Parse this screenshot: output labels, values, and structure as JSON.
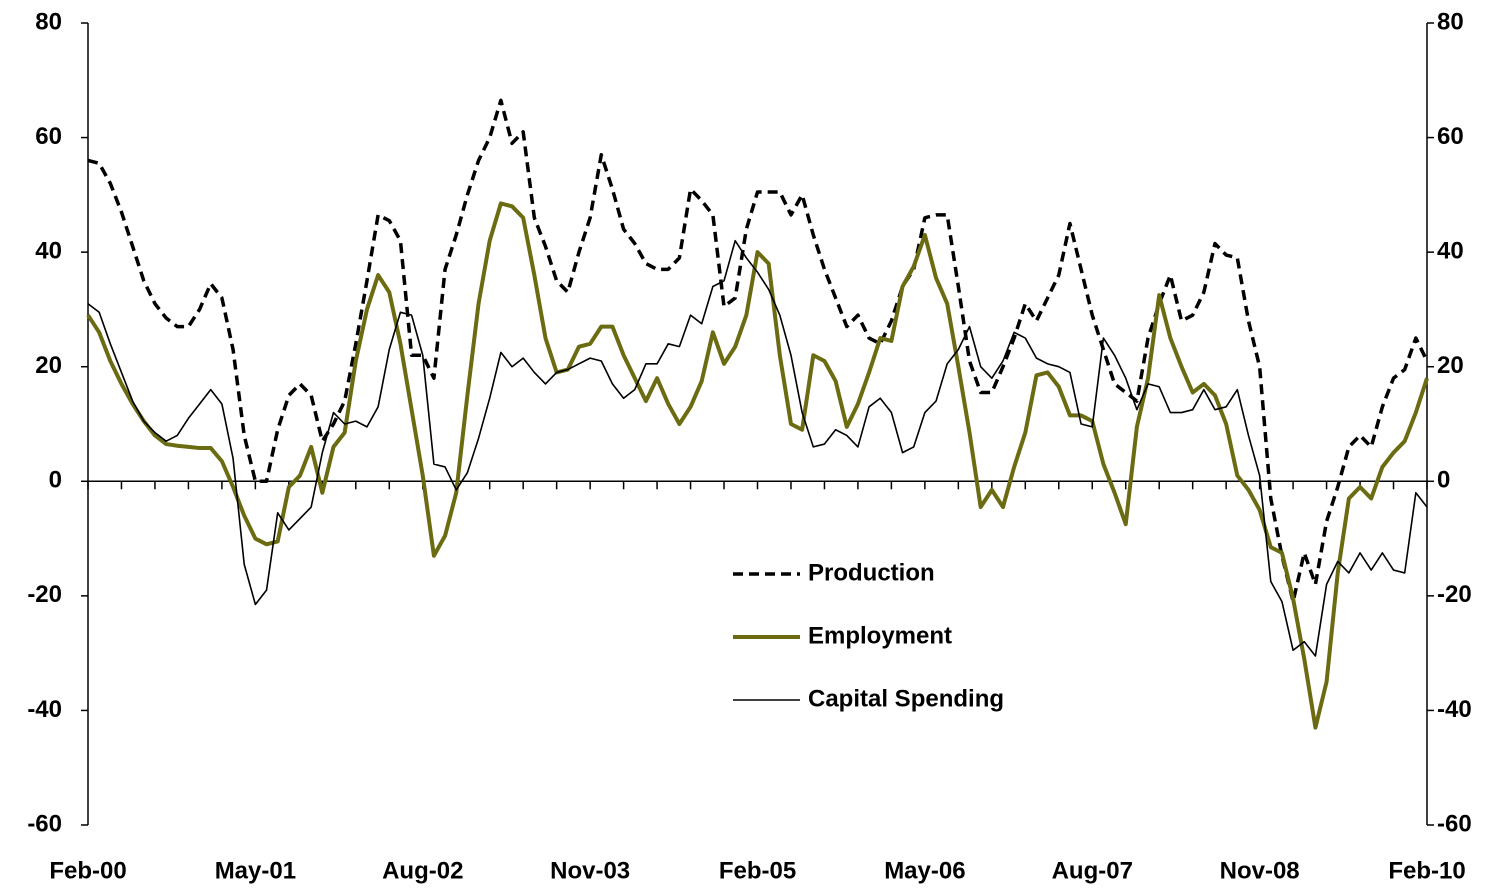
{
  "chart_data": {
    "type": "line",
    "categories": [
      "Feb-00",
      null,
      null,
      null,
      null,
      null,
      null,
      null,
      null,
      null,
      null,
      null,
      null,
      null,
      null,
      "May-01",
      null,
      null,
      null,
      null,
      null,
      null,
      null,
      null,
      null,
      null,
      null,
      null,
      null,
      null,
      "Aug-02",
      null,
      null,
      null,
      null,
      null,
      null,
      null,
      null,
      null,
      null,
      null,
      null,
      null,
      null,
      "Nov-03",
      null,
      null,
      null,
      null,
      null,
      null,
      null,
      null,
      null,
      null,
      null,
      null,
      null,
      null,
      "Feb-05",
      null,
      null,
      null,
      null,
      null,
      null,
      null,
      null,
      null,
      null,
      null,
      null,
      null,
      null,
      "May-06",
      null,
      null,
      null,
      null,
      null,
      null,
      null,
      null,
      null,
      null,
      null,
      null,
      null,
      null,
      "Aug-07",
      null,
      null,
      null,
      null,
      null,
      null,
      null,
      null,
      null,
      null,
      null,
      null,
      null,
      null,
      "Nov-08",
      null,
      null,
      null,
      null,
      null,
      null,
      null,
      null,
      null,
      null,
      null,
      null,
      null,
      null,
      "Feb-10"
    ],
    "series": [
      {
        "name": "Production",
        "color": "#000000",
        "dash": true,
        "width": 3.5,
        "values": [
          56,
          55.5,
          52,
          47,
          41,
          35,
          31,
          28.5,
          27,
          27,
          30,
          34.5,
          32,
          23,
          8,
          0,
          0,
          9,
          15,
          17,
          15,
          7,
          10,
          14,
          24,
          35,
          46.5,
          45.5,
          42,
          22,
          22,
          18,
          37,
          43,
          50,
          56,
          60,
          66.5,
          59,
          61,
          46,
          41,
          35,
          33,
          40,
          46,
          57,
          51,
          44,
          41.5,
          38,
          37,
          37,
          39,
          51,
          49,
          46.5,
          30.5,
          32,
          44,
          50.5,
          50.5,
          50.5,
          46.5,
          50,
          43,
          37,
          32,
          27,
          29,
          25,
          24,
          28,
          34,
          37,
          46,
          46.5,
          46.5,
          34,
          21,
          15.5,
          15.5,
          20,
          25,
          31,
          28,
          32,
          36,
          45,
          37,
          29,
          23,
          17,
          15.5,
          14,
          25,
          31,
          36,
          28,
          29,
          33,
          41.5,
          39.5,
          39,
          28,
          20,
          -3,
          -13,
          -21,
          -12.5,
          -18,
          -7,
          -1,
          6,
          8,
          6,
          13,
          18,
          19.5,
          25,
          21
        ]
      },
      {
        "name": "Employment",
        "color": "#6b6b12",
        "dash": false,
        "width": 4,
        "values": [
          29,
          26,
          21,
          17,
          13.5,
          10.5,
          8,
          6.5,
          6.2,
          6,
          5.8,
          5.8,
          3.5,
          -1,
          -6,
          -10,
          -11,
          -10.5,
          -1,
          1,
          6,
          -2,
          6,
          8.5,
          21,
          30,
          36,
          33,
          24,
          12.5,
          1,
          -13,
          -9.5,
          -2,
          15,
          31,
          42,
          48.5,
          48,
          46,
          36,
          25,
          19,
          19.5,
          23.5,
          24,
          27,
          27,
          22,
          18,
          14,
          18,
          13.5,
          10,
          13,
          17.5,
          26,
          20.5,
          23.5,
          29,
          40,
          38,
          22,
          10,
          9,
          22,
          21,
          17.5,
          9.5,
          13.5,
          19,
          25,
          24.5,
          34,
          37.5,
          43,
          35.5,
          31,
          20,
          8.5,
          -4.5,
          -1.5,
          -4.5,
          2.5,
          8.5,
          18.5,
          19,
          16.5,
          11.5,
          11.5,
          10.5,
          3,
          -2,
          -7.5,
          9.5,
          18,
          32.5,
          25,
          20,
          15.5,
          17,
          15,
          10,
          1,
          -1.5,
          -5,
          -11.5,
          -12.5,
          -20.5,
          -31,
          -43,
          -35,
          -16,
          -3,
          -1,
          -3,
          2.5,
          5,
          7,
          12,
          18
        ]
      },
      {
        "name": "Capital Spending",
        "color": "#000000",
        "dash": false,
        "width": 1.6,
        "values": [
          31,
          29.5,
          24,
          19,
          14,
          10.5,
          8.5,
          7,
          8,
          11,
          13.5,
          16,
          13.5,
          4,
          -14.5,
          -21.5,
          -19,
          -5.5,
          -8.5,
          -6.5,
          -4.5,
          5,
          12,
          10,
          10.5,
          9.5,
          13,
          23,
          29.5,
          29,
          22,
          3,
          2.5,
          -1.5,
          1.5,
          7.5,
          14.5,
          22.5,
          20,
          21.5,
          19,
          17,
          19,
          19.5,
          20.5,
          21.5,
          21,
          17,
          14.5,
          16,
          20.5,
          20.5,
          24,
          23.5,
          29,
          27.5,
          34,
          35,
          42,
          39,
          36.5,
          33.5,
          29,
          22,
          12,
          6,
          6.5,
          9,
          8,
          6,
          13,
          14.5,
          12,
          5,
          6,
          12,
          14,
          20.5,
          23,
          27,
          20,
          18,
          21,
          26,
          25,
          21.5,
          20.5,
          20,
          19,
          10,
          9.5,
          25,
          22,
          18,
          12.5,
          17,
          16.5,
          12,
          12,
          12.5,
          16,
          12.5,
          13,
          16,
          8,
          1,
          -17.5,
          -21,
          -29.5,
          -28,
          -30.5,
          -18,
          -14,
          -16,
          -12.5,
          -15.5,
          -12.5,
          -15.5,
          -16,
          -2,
          -4.5
        ]
      }
    ],
    "ylim": [
      -60,
      80
    ],
    "yticks": [
      -60,
      -40,
      -20,
      0,
      20,
      40,
      60,
      80
    ],
    "y2lim": [
      -60,
      80
    ],
    "y2ticks": [
      -60,
      -40,
      -20,
      0,
      20,
      40,
      60,
      80
    ],
    "grid": false,
    "legend": "center"
  }
}
